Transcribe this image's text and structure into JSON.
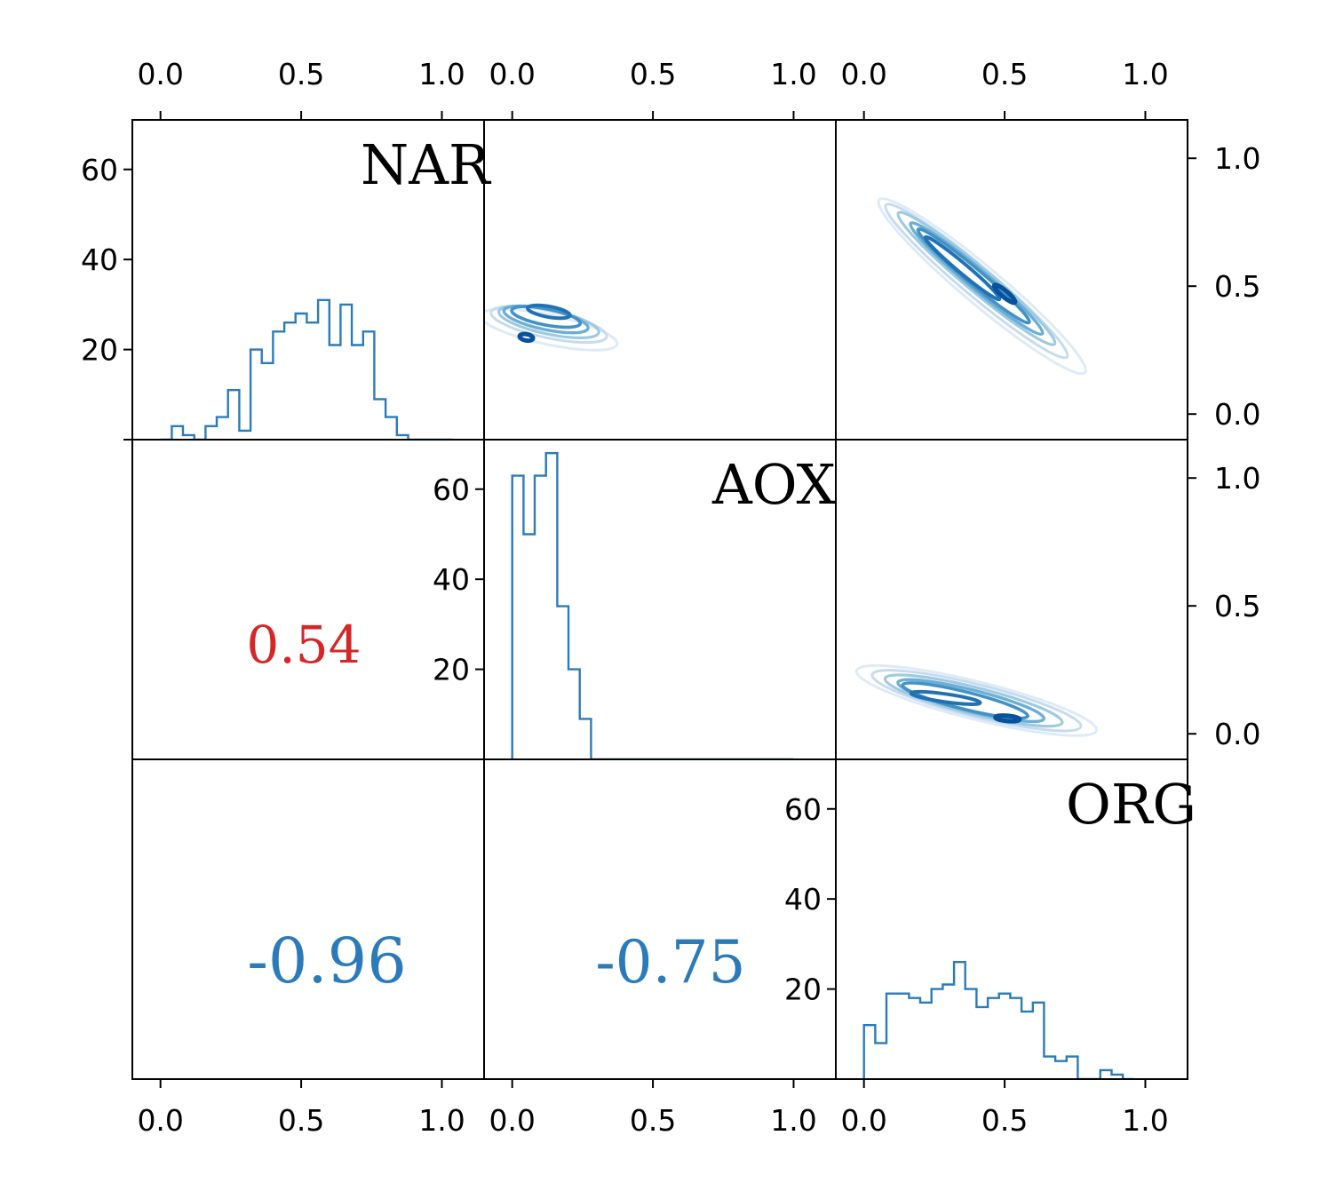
{
  "chart_data": {
    "type": "pairplot",
    "variables": [
      "NAR",
      "AOX",
      "ORG"
    ],
    "axis_ticks": [
      "0.0",
      "0.5",
      "1.0"
    ],
    "hist_ticks": [
      "20",
      "40",
      "60"
    ],
    "xlim": [
      -0.1,
      1.15
    ],
    "hist_ylim": [
      0,
      71
    ],
    "kde_ylim": [
      -0.1,
      1.15
    ],
    "colors": {
      "hist": "#2b7bba",
      "positive_corr": "#d62728",
      "negative_corr": "#2b7bba",
      "kde": [
        "#deebf7",
        "#c6dbef",
        "#9ecae1",
        "#6baed6",
        "#4292c6",
        "#2171b5",
        "#08519c"
      ]
    },
    "histograms": [
      {
        "variable": "NAR",
        "bin_width": 0.04,
        "bin_start": 0.0,
        "counts": [
          0,
          3,
          1,
          0,
          3,
          5,
          11,
          2,
          20,
          17,
          24,
          26,
          28,
          26,
          31,
          21,
          30,
          21,
          24,
          9,
          5,
          1,
          0,
          0,
          0,
          0
        ]
      },
      {
        "variable": "AOX",
        "bin_width": 0.04,
        "bin_start": 0.0,
        "counts": [
          63,
          50,
          63,
          68,
          34,
          20,
          9,
          0,
          0,
          0,
          0,
          0,
          0,
          0,
          0,
          0,
          0,
          0,
          0,
          0,
          0,
          0,
          0,
          0,
          0
        ]
      },
      {
        "variable": "ORG",
        "bin_width": 0.04,
        "bin_start": 0.0,
        "counts": [
          12,
          8,
          19,
          19,
          18,
          17,
          20,
          21,
          26,
          20,
          16,
          18,
          19,
          18,
          15,
          17,
          5,
          4,
          5,
          0,
          0,
          2,
          1,
          0
        ]
      }
    ],
    "correlations": [
      {
        "pair": [
          "NAR",
          "AOX"
        ],
        "value": "0.54"
      },
      {
        "pair": [
          "NAR",
          "ORG"
        ],
        "value": "-0.96"
      },
      {
        "pair": [
          "AOX",
          "ORG"
        ],
        "value": "-0.75"
      }
    ],
    "kde": [
      {
        "pair": [
          "NAR",
          "AOX"
        ],
        "contours": [
          {
            "level": 0,
            "center": [
              0.13,
              0.33
            ],
            "radii": [
              0.055,
              0.26
            ],
            "tilt_deg": 78
          },
          {
            "level": 1,
            "center": [
              0.13,
              0.35
            ],
            "radii": [
              0.05,
              0.22
            ],
            "tilt_deg": 78
          },
          {
            "level": 2,
            "center": [
              0.13,
              0.36
            ],
            "radii": [
              0.045,
              0.19
            ],
            "tilt_deg": 78
          },
          {
            "level": 3,
            "center": [
              0.12,
              0.37
            ],
            "radii": [
              0.038,
              0.16
            ],
            "tilt_deg": 78
          },
          {
            "level": 4,
            "center": [
              0.12,
              0.38
            ],
            "radii": [
              0.03,
              0.13
            ],
            "tilt_deg": 79
          },
          {
            "level": 5,
            "center": [
              0.13,
              0.4
            ],
            "radii": [
              0.02,
              0.08
            ],
            "tilt_deg": 80
          },
          {
            "level": 6,
            "center": [
              0.05,
              0.3
            ],
            "radii": [
              0.012,
              0.025
            ],
            "tilt_deg": 80
          }
        ]
      },
      {
        "pair": [
          "NAR",
          "ORG"
        ],
        "contours": [
          {
            "level": 0,
            "center": [
              0.42,
              0.5
            ],
            "radii": [
              0.5,
              0.07
            ],
            "tilt_deg": -40
          },
          {
            "level": 1,
            "center": [
              0.4,
              0.52
            ],
            "radii": [
              0.44,
              0.055
            ],
            "tilt_deg": -40
          },
          {
            "level": 2,
            "center": [
              0.4,
              0.53
            ],
            "radii": [
              0.38,
              0.045
            ],
            "tilt_deg": -40
          },
          {
            "level": 3,
            "center": [
              0.4,
              0.53
            ],
            "radii": [
              0.32,
              0.036
            ],
            "tilt_deg": -40
          },
          {
            "level": 4,
            "center": [
              0.39,
              0.54
            ],
            "radii": [
              0.27,
              0.028
            ],
            "tilt_deg": -40
          },
          {
            "level": 5,
            "center": [
              0.35,
              0.57
            ],
            "radii": [
              0.18,
              0.018
            ],
            "tilt_deg": -40
          },
          {
            "level": 6,
            "center": [
              0.5,
              0.47
            ],
            "radii": [
              0.05,
              0.012
            ],
            "tilt_deg": -40
          }
        ]
      },
      {
        "pair": [
          "AOX",
          "ORG"
        ],
        "contours": [
          {
            "level": 0,
            "center": [
              0.4,
              0.13
            ],
            "radii": [
              0.46,
              0.07
            ],
            "tilt_deg": -14
          },
          {
            "level": 1,
            "center": [
              0.4,
              0.13
            ],
            "radii": [
              0.4,
              0.06
            ],
            "tilt_deg": -14
          },
          {
            "level": 2,
            "center": [
              0.39,
              0.13
            ],
            "radii": [
              0.34,
              0.05
            ],
            "tilt_deg": -14
          },
          {
            "level": 3,
            "center": [
              0.38,
              0.13
            ],
            "radii": [
              0.28,
              0.04
            ],
            "tilt_deg": -14
          },
          {
            "level": 4,
            "center": [
              0.36,
              0.13
            ],
            "radii": [
              0.24,
              0.032
            ],
            "tilt_deg": -14
          },
          {
            "level": 5,
            "center": [
              0.29,
              0.14
            ],
            "radii": [
              0.13,
              0.015
            ],
            "tilt_deg": -8
          },
          {
            "level": 6,
            "center": [
              0.51,
              0.06
            ],
            "radii": [
              0.045,
              0.01
            ],
            "tilt_deg": -5
          }
        ]
      }
    ]
  }
}
